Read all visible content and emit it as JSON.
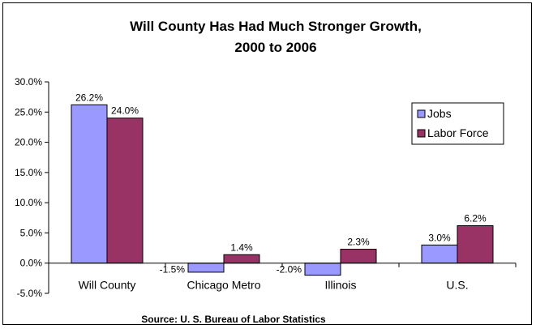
{
  "chart_data": {
    "type": "bar",
    "title_lines": [
      "Will County Has Had Much Stronger Growth,",
      "2000 to 2006"
    ],
    "categories": [
      "Will County",
      "Chicago Metro",
      "Illinois",
      "U.S."
    ],
    "series": [
      {
        "name": "Jobs",
        "values": [
          26.2,
          -1.5,
          -2.0,
          3.0
        ],
        "labels": [
          "26.2%",
          "-1.5%",
          "-2.0%",
          "3.0%"
        ],
        "color": "#9999FF"
      },
      {
        "name": "Labor Force",
        "values": [
          24.0,
          1.4,
          2.3,
          6.2
        ],
        "labels": [
          "24.0%",
          "1.4%",
          "2.3%",
          "6.2%"
        ],
        "color": "#993366"
      }
    ],
    "yticks": [
      {
        "value": 30,
        "label": "30.0%"
      },
      {
        "value": 25,
        "label": "25.0%"
      },
      {
        "value": 20,
        "label": "20.0%"
      },
      {
        "value": 15,
        "label": "15.0%"
      },
      {
        "value": 10,
        "label": "10.0%"
      },
      {
        "value": 5,
        "label": "5.0%"
      },
      {
        "value": 0,
        "label": "0.0%"
      },
      {
        "value": -5,
        "label": "-5.0%"
      }
    ],
    "ylim": [
      -5,
      30
    ],
    "grid": false,
    "legend_position": "top-right",
    "source": "Source: U. S. Bureau of Labor Statistics"
  }
}
